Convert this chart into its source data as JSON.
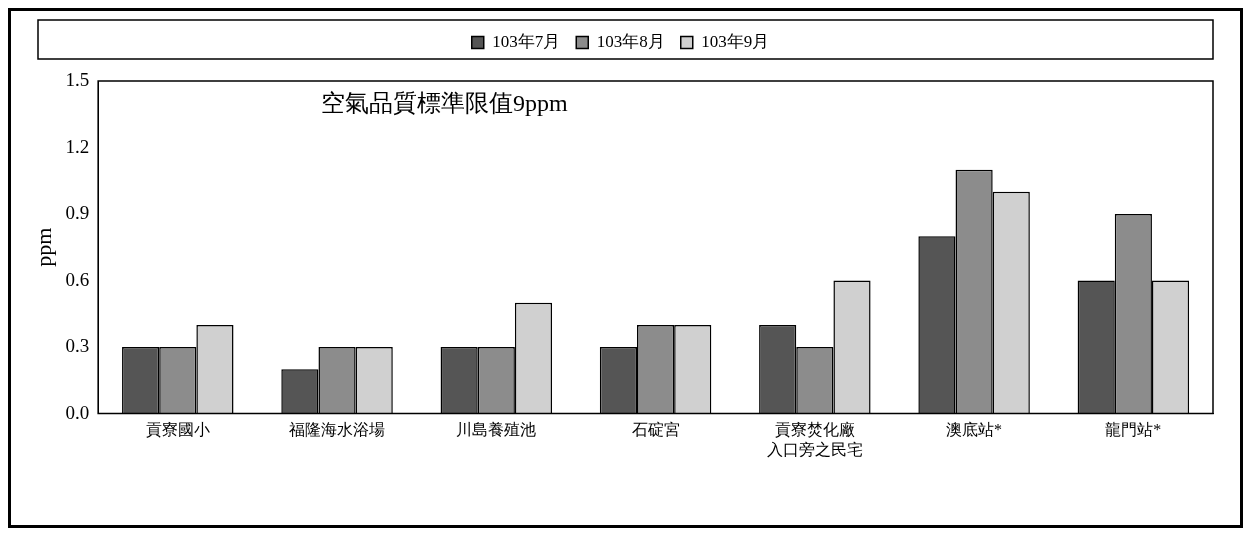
{
  "chart_data": {
    "type": "bar",
    "ylabel": "ppm",
    "annotations": [
      "空氣品質標準限值9ppm"
    ],
    "categories": [
      "貢寮國小",
      "福隆海水浴場",
      "川島養殖池",
      "石碇宮",
      "貢寮焚化廠入口旁之民宅",
      "澳底站*",
      "龍門站*"
    ],
    "series": [
      {
        "name": "103年7月",
        "color": "#555555",
        "values": [
          0.3,
          0.2,
          0.3,
          0.3,
          0.4,
          0.8,
          0.6
        ]
      },
      {
        "name": "103年8月",
        "color": "#8c8c8c",
        "values": [
          0.3,
          0.3,
          0.3,
          0.4,
          0.3,
          1.1,
          0.9
        ]
      },
      {
        "name": "103年9月",
        "color": "#d0d0d0",
        "values": [
          0.4,
          0.3,
          0.5,
          0.4,
          0.6,
          1.0,
          0.6
        ]
      }
    ],
    "ylim": [
      0,
      1.5
    ],
    "yticks": [
      {
        "value": 0,
        "label": "0.0"
      },
      {
        "value": 0.3,
        "label": "0.3"
      },
      {
        "value": 0.6,
        "label": "0.6"
      },
      {
        "value": 0.9,
        "label": "0.9"
      },
      {
        "value": 1.2,
        "label": "1.2"
      },
      {
        "value": 1.5,
        "label": "1.5"
      }
    ],
    "grid": false,
    "legend": "top"
  }
}
